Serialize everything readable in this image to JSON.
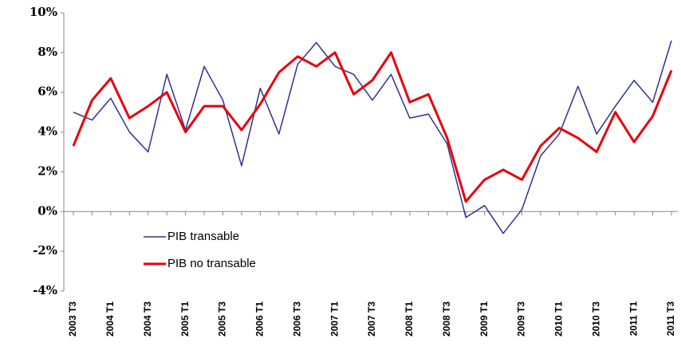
{
  "chart_data": {
    "type": "line",
    "categories": [
      "2003 T3",
      null,
      "2004 T1",
      null,
      "2004 T3",
      null,
      "2005 T1",
      null,
      "2005 T3",
      null,
      "2006 T1",
      null,
      "2006 T3",
      null,
      "2007 T1",
      null,
      "2007 T3",
      null,
      "2008 T1",
      null,
      "2008 T3",
      null,
      "2009 T1",
      null,
      "2009 T3",
      null,
      "2010 T1",
      null,
      "2010 T3",
      null,
      "2011 T1",
      null,
      "2011 T3"
    ],
    "series": [
      {
        "name": "PIB transable",
        "color": "#2e3192",
        "values": [
          5.0,
          4.6,
          5.7,
          4.0,
          3.0,
          6.9,
          4.1,
          7.3,
          5.6,
          2.3,
          6.2,
          3.9,
          7.4,
          8.5,
          7.3,
          6.9,
          5.6,
          6.9,
          4.7,
          4.9,
          3.4,
          -0.3,
          0.3,
          -1.1,
          0.1,
          2.8,
          3.9,
          6.3,
          3.9,
          5.3,
          6.6,
          5.5,
          8.6
        ]
      },
      {
        "name": "PIB no transable",
        "color": "#e8000b",
        "values": [
          3.3,
          5.6,
          6.7,
          4.7,
          5.3,
          6.0,
          4.0,
          5.3,
          5.3,
          4.1,
          5.4,
          7.0,
          7.8,
          7.3,
          8.0,
          5.9,
          6.6,
          8.0,
          5.5,
          5.9,
          3.7,
          0.5,
          1.6,
          2.1,
          1.6,
          3.3,
          4.2,
          3.7,
          3.0,
          5.0,
          3.5,
          4.8,
          7.1
        ]
      }
    ],
    "ylim": [
      -4,
      10
    ],
    "yticks": [
      {
        "value": -4,
        "label": "-4%"
      },
      {
        "value": -2,
        "label": "-2%"
      },
      {
        "value": 0,
        "label": "0%"
      },
      {
        "value": 2,
        "label": "2%"
      },
      {
        "value": 4,
        "label": "4%"
      },
      {
        "value": 6,
        "label": "6%"
      },
      {
        "value": 8,
        "label": "8%"
      },
      {
        "value": 10,
        "label": "10%"
      }
    ],
    "legend": "lower left"
  }
}
